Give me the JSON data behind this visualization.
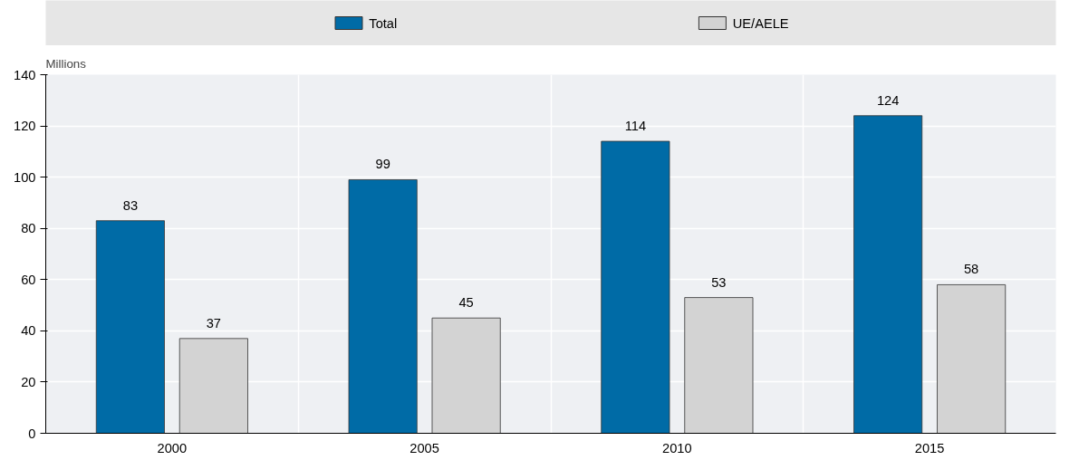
{
  "chart_data": {
    "type": "bar",
    "ylabel": "Millions",
    "categories": [
      "2000",
      "2005",
      "2010",
      "2015"
    ],
    "series": [
      {
        "name": "Total",
        "color": "#006ba6",
        "values": [
          83,
          99,
          114,
          124
        ]
      },
      {
        "name": "UE/AELE",
        "color": "#d3d3d3",
        "values": [
          37,
          45,
          53,
          58
        ]
      }
    ],
    "ylim": [
      0,
      140
    ],
    "yticks": [
      0,
      20,
      40,
      60,
      80,
      100,
      120,
      140
    ],
    "grid": true,
    "legend": "top",
    "data_labels": true
  }
}
